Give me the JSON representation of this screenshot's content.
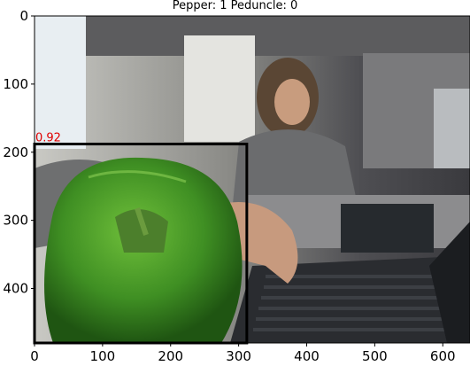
{
  "title": "Pepper: 1 Peduncle: 0",
  "image_desc_icon": "photo-scene",
  "axes": {
    "x_ticks": [
      "0",
      "100",
      "200",
      "300",
      "400",
      "500",
      "600"
    ],
    "y_ticks": [
      "0",
      "100",
      "200",
      "300",
      "400"
    ],
    "x_range": [
      0,
      640
    ],
    "y_range": [
      480,
      0
    ]
  },
  "detections": [
    {
      "label_score": "0.92",
      "box_color": "#000000",
      "score_color": "#e00000",
      "x0": 0,
      "y0": 188,
      "x1": 312,
      "y1": 480
    }
  ],
  "colors": {
    "pepper": "#3f8f23",
    "box": "#000000",
    "score": "#e00000"
  }
}
